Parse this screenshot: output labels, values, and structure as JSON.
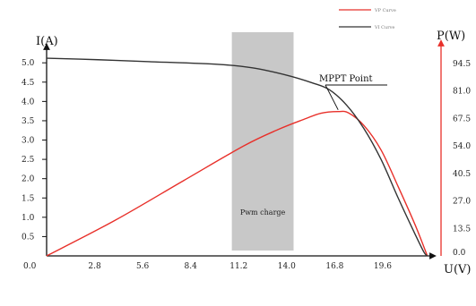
{
  "chart_data": {
    "type": "line",
    "x_axis": {
      "label": "U(V)",
      "range": [
        0,
        23
      ],
      "ticks": [
        {
          "value": 0,
          "label": "0.0"
        },
        {
          "value": 2.8,
          "label": "2.8"
        },
        {
          "value": 5.6,
          "label": "5.6"
        },
        {
          "value": 8.4,
          "label": "8.4"
        },
        {
          "value": 11.2,
          "label": "11.2"
        },
        {
          "value": 14.0,
          "label": "14.0"
        },
        {
          "value": 16.8,
          "label": "16.8"
        },
        {
          "value": 19.6,
          "label": "19.6"
        }
      ]
    },
    "y_left": {
      "label": "I(A)",
      "range": [
        0,
        5.7
      ],
      "ticks": [
        "0.5",
        "1.0",
        "1.5",
        "2.0",
        "2.5",
        "3.0",
        "3.5",
        "4.0",
        "4.5",
        "5.0"
      ]
    },
    "y_right": {
      "label": "P(W)",
      "range": [
        0,
        108
      ],
      "ticks": [
        "0.0",
        "13.5",
        "27.0",
        "40.5",
        "54.0",
        "67.5",
        "81.0",
        "94.5"
      ]
    },
    "series": [
      {
        "name": "VP Curve",
        "color": "#e8302a",
        "axis": "right",
        "points": [
          [
            0,
            0
          ],
          [
            4,
            17.5
          ],
          [
            8,
            37
          ],
          [
            11.5,
            54
          ],
          [
            13.5,
            62
          ],
          [
            15,
            67
          ],
          [
            16,
            70
          ],
          [
            17,
            70.8
          ],
          [
            17.6,
            70.2
          ],
          [
            18.5,
            64
          ],
          [
            19.5,
            52
          ],
          [
            20.5,
            34
          ],
          [
            21.5,
            15
          ],
          [
            22.2,
            0
          ]
        ]
      },
      {
        "name": "VI Curve",
        "color": "#333333",
        "axis": "left",
        "points": [
          [
            0,
            5.12
          ],
          [
            3,
            5.08
          ],
          [
            6,
            5.03
          ],
          [
            10,
            4.96
          ],
          [
            12,
            4.87
          ],
          [
            14,
            4.68
          ],
          [
            15.5,
            4.48
          ],
          [
            16.5,
            4.3
          ],
          [
            17.5,
            3.9
          ],
          [
            18.5,
            3.3
          ],
          [
            19.5,
            2.5
          ],
          [
            20.5,
            1.5
          ],
          [
            21.5,
            0.55
          ],
          [
            22,
            0.1
          ],
          [
            22.2,
            0
          ]
        ]
      }
    ],
    "shaded_region": {
      "label": "Pwm charge",
      "x_range": [
        10.8,
        14.4
      ]
    },
    "annotations": [
      {
        "text": "MPPT Point",
        "at": [
          17,
          70.8
        ]
      }
    ],
    "legend": {
      "position": "top-right"
    },
    "grid": false
  }
}
